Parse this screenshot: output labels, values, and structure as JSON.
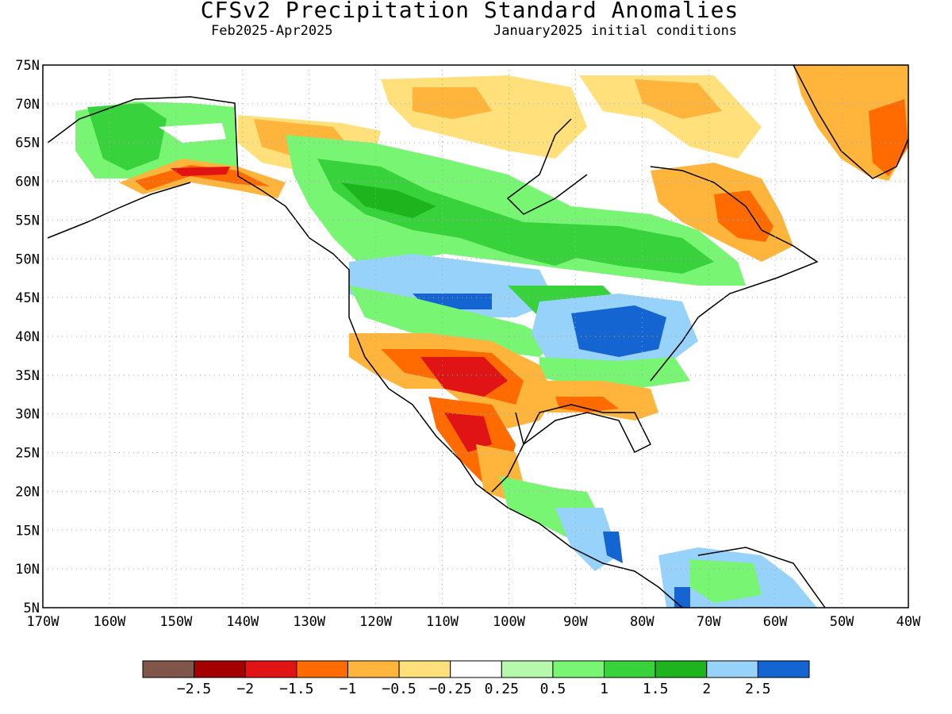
{
  "header": {
    "title": "CFSv2 Precipitation Standard Anomalies",
    "period": "Feb2025-Apr2025",
    "initial_conditions": "January2025 initial conditions"
  },
  "axes": {
    "lat_labels": [
      "75N",
      "70N",
      "65N",
      "60N",
      "55N",
      "50N",
      "45N",
      "40N",
      "35N",
      "30N",
      "25N",
      "20N",
      "15N",
      "10N",
      "5N"
    ],
    "lon_labels": [
      "170W",
      "160W",
      "150W",
      "140W",
      "130W",
      "120W",
      "110W",
      "100W",
      "90W",
      "80W",
      "70W",
      "60W",
      "50W",
      "40W"
    ],
    "lat_range": [
      5,
      75
    ],
    "lon_range": [
      -170,
      -40
    ]
  },
  "colorbar": {
    "colors": [
      "#80554a",
      "#a50000",
      "#e01414",
      "#ff6b00",
      "#ffb43c",
      "#ffe07a",
      "#ffffff",
      "#b4faaa",
      "#78f573",
      "#37d23c",
      "#1eb41e",
      "#96d2fa",
      "#1464d2"
    ],
    "labels": [
      "-2.5",
      "-2",
      "-1.5",
      "-1",
      "-0.5",
      "-0.25",
      "0.25",
      "0.5",
      "1",
      "1.5",
      "2",
      "2.5"
    ]
  }
}
